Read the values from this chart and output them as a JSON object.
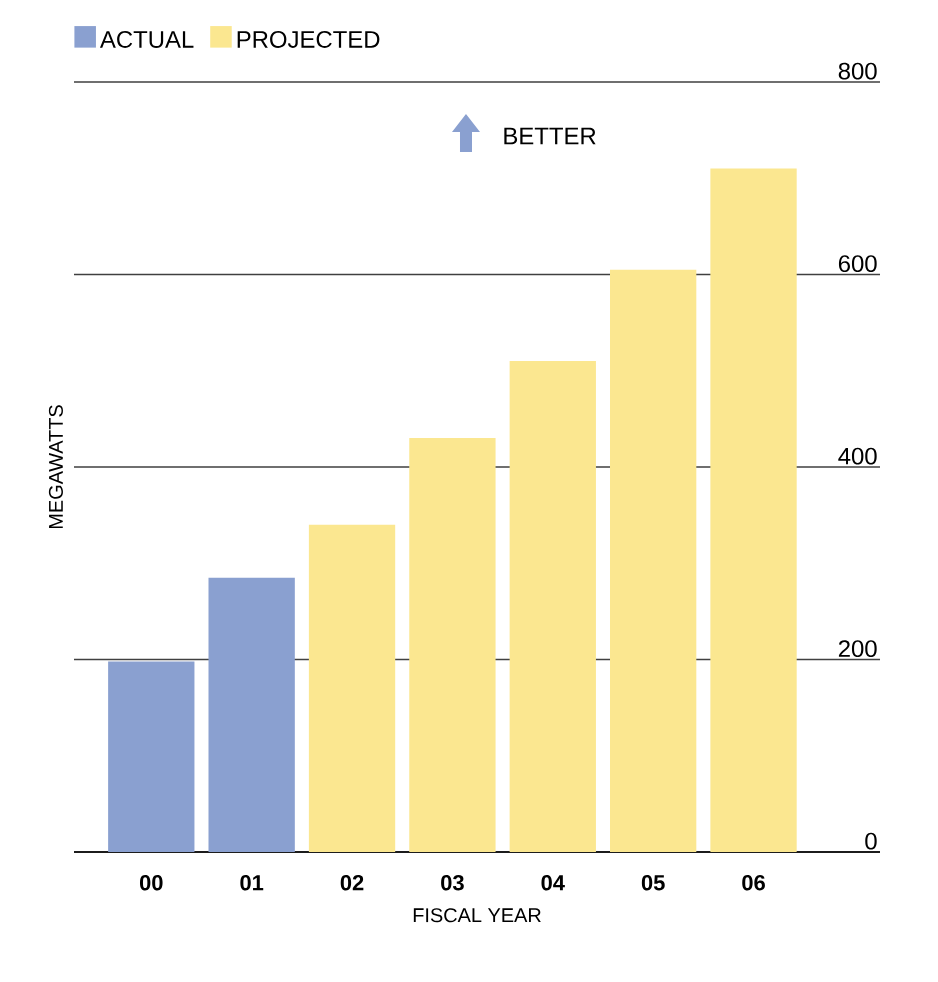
{
  "chart_data": {
    "type": "bar",
    "categories": [
      "00",
      "01",
      "02",
      "03",
      "04",
      "05",
      "06"
    ],
    "series": [
      {
        "name": "ACTUAL",
        "color": "#8aa0d0",
        "values": [
          198,
          285,
          null,
          null,
          null,
          null,
          null
        ]
      },
      {
        "name": "PROJECTED",
        "color": "#fbe790",
        "values": [
          null,
          null,
          340,
          430,
          510,
          605,
          710
        ]
      }
    ],
    "xlabel": "FISCAL YEAR",
    "ylabel": "MEGAWATTS",
    "ylim": [
      0,
      800
    ],
    "yticks": [
      0,
      200,
      400,
      600,
      800
    ],
    "grid": "y",
    "legend": "top left",
    "annotations": [
      "BETTER"
    ]
  }
}
